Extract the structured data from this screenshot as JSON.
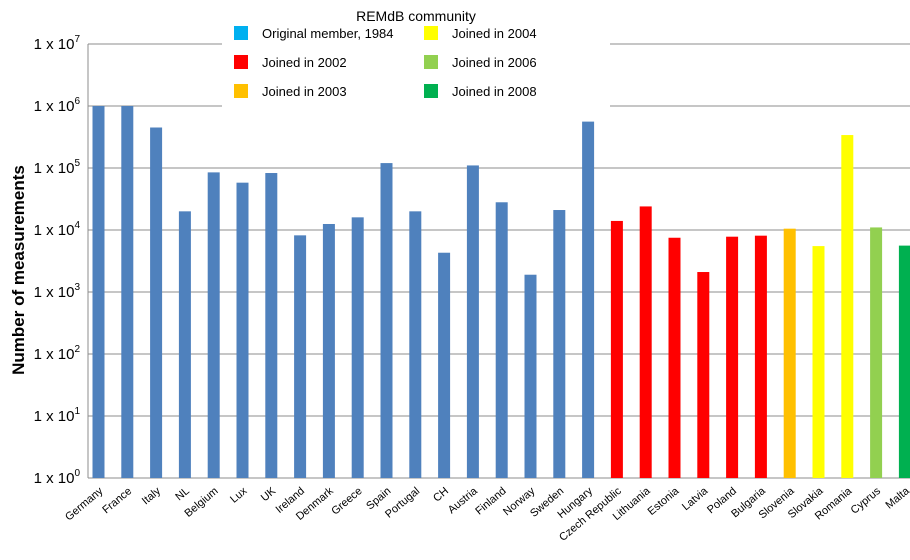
{
  "chart_data": {
    "type": "bar",
    "title": "REMdB community",
    "ylabel": "Number of measurements",
    "xlabel": "",
    "yscale": "log",
    "ylim": [
      1,
      10000000
    ],
    "grid": true,
    "legend_position": "top-center",
    "ytick_labels": [
      {
        "base": "1 x 10",
        "exp": "0"
      },
      {
        "base": "1 x 10",
        "exp": "1"
      },
      {
        "base": "1 x 10",
        "exp": "2"
      },
      {
        "base": "1 x 10",
        "exp": "3"
      },
      {
        "base": "1 x 10",
        "exp": "4"
      },
      {
        "base": "1 x 10",
        "exp": "5"
      },
      {
        "base": "1 x 10",
        "exp": "6"
      },
      {
        "base": "1 x 10",
        "exp": "7"
      }
    ],
    "legend": [
      {
        "label": "Original member, 1984",
        "color": "#00b0f0"
      },
      {
        "label": "Joined in 2002",
        "color": "#ff0000"
      },
      {
        "label": "Joined in 2003",
        "color": "#ffc000"
      },
      {
        "label": "Joined in 2004",
        "color": "#ffff00"
      },
      {
        "label": "Joined in 2006",
        "color": "#92d050"
      },
      {
        "label": "Joined in 2008",
        "color": "#00b050"
      }
    ],
    "categories": [
      "Germany",
      "France",
      "Italy",
      "NL",
      "Belgium",
      "Lux",
      "UK",
      "Ireland",
      "Denmark",
      "Greece",
      "Spain",
      "Portugal",
      "CH",
      "Austria",
      "Finland",
      "Norway",
      "Sweden",
      "Hungary",
      "Czech Republic",
      "Lithuania",
      "Estonia",
      "Latvia",
      "Poland",
      "Bulgaria",
      "Slovenia",
      "Slovakia",
      "Romania",
      "Cyprus",
      "Malta"
    ],
    "values": [
      1000000,
      1000000,
      450000,
      20000,
      85000,
      58000,
      83000,
      8200,
      12500,
      16000,
      120000,
      20000,
      4300,
      110000,
      28000,
      1900,
      21000,
      560000,
      14000,
      24000,
      7500,
      2100,
      7800,
      8100,
      10500,
      5500,
      340000,
      11000,
      5600
    ],
    "colors": [
      "#4f81bd",
      "#4f81bd",
      "#4f81bd",
      "#4f81bd",
      "#4f81bd",
      "#4f81bd",
      "#4f81bd",
      "#4f81bd",
      "#4f81bd",
      "#4f81bd",
      "#4f81bd",
      "#4f81bd",
      "#4f81bd",
      "#4f81bd",
      "#4f81bd",
      "#4f81bd",
      "#4f81bd",
      "#4f81bd",
      "#ff0000",
      "#ff0000",
      "#ff0000",
      "#ff0000",
      "#ff0000",
      "#ff0000",
      "#ffc000",
      "#ffff00",
      "#ffff00",
      "#92d050",
      "#00b050"
    ]
  }
}
